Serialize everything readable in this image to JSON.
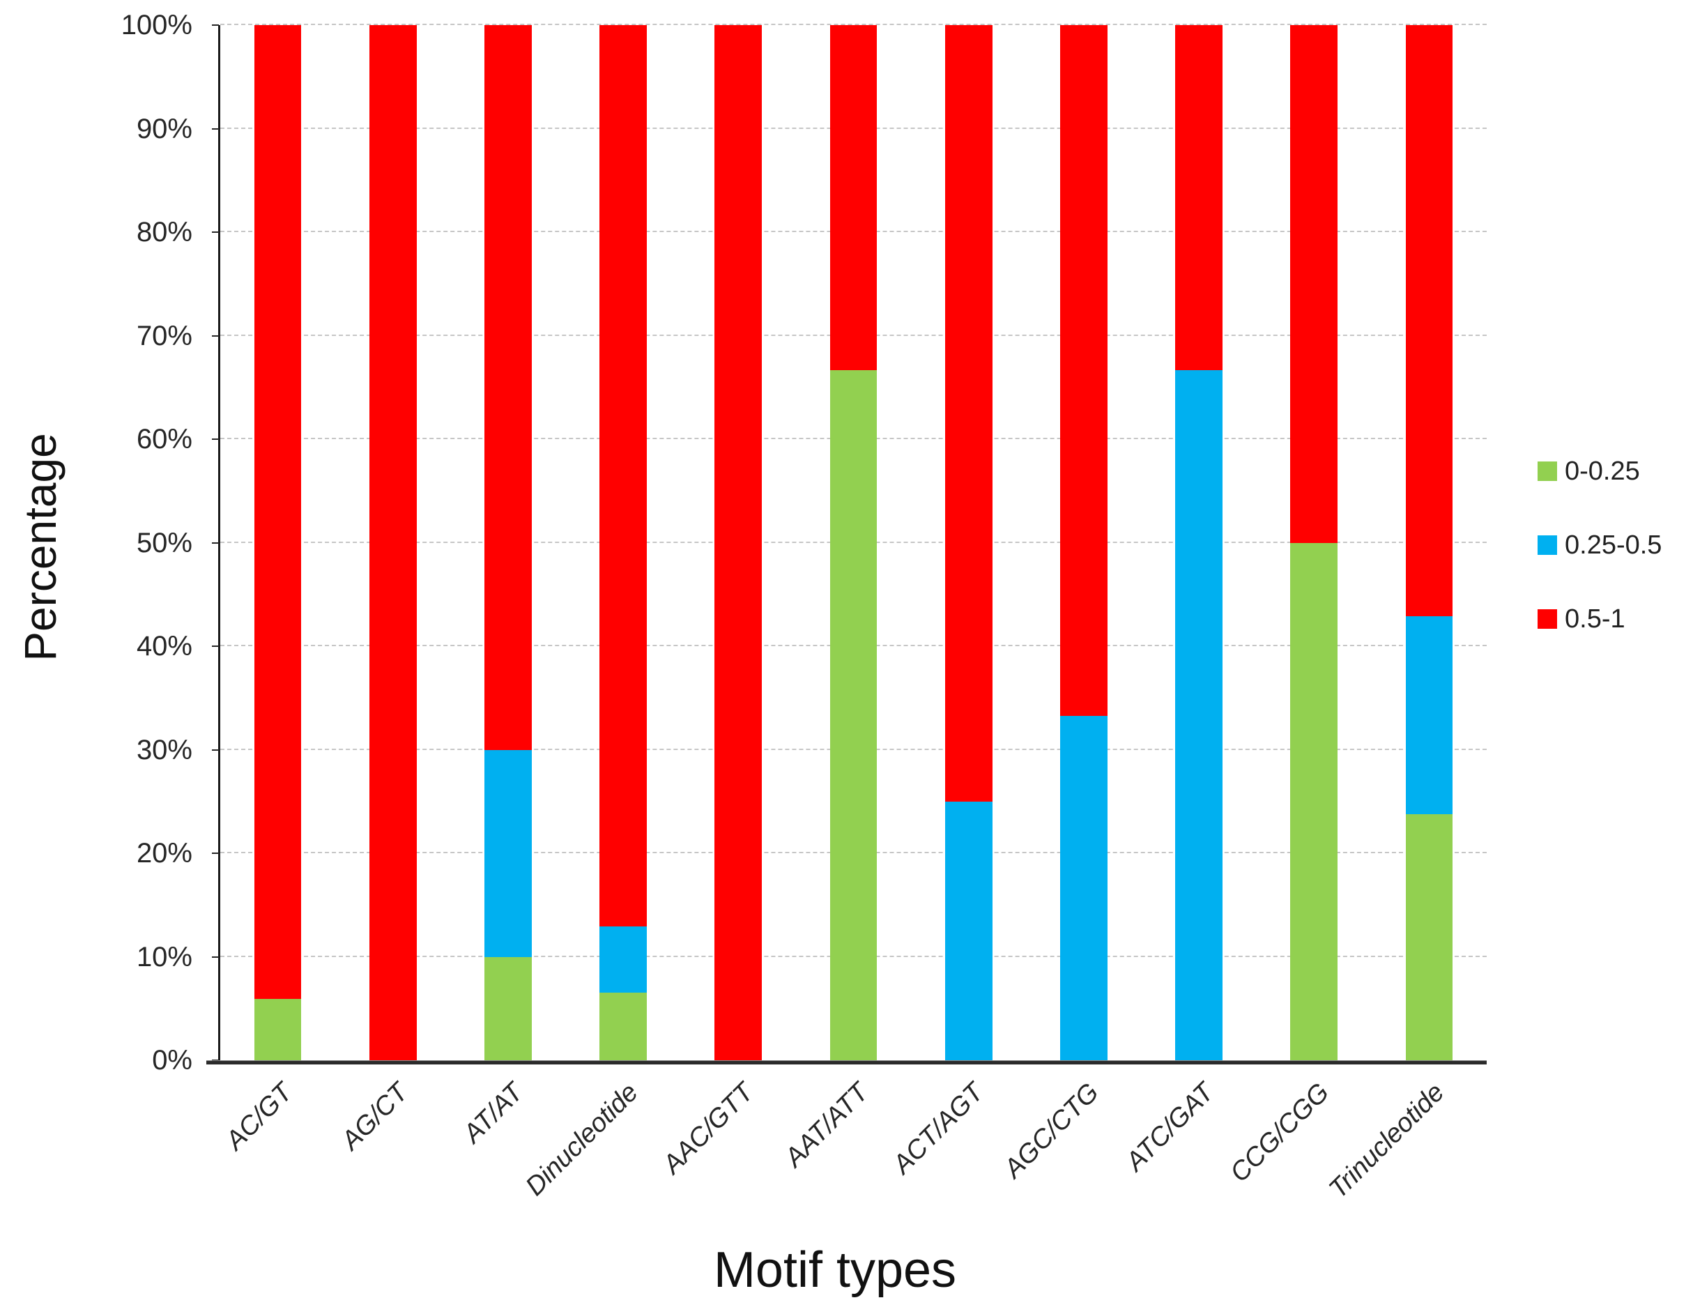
{
  "chart_data": {
    "type": "bar",
    "stacked": true,
    "percent_stacked": true,
    "title": "",
    "xlabel": "Motif types",
    "ylabel": "Percentage",
    "categories": [
      "AC/GT",
      "AG/CT",
      "AT/AT",
      "Dinucleotide",
      "AAC/GTT",
      "AAT/ATT",
      "ACT/AGT",
      "AGC/CTG",
      "ATC/GAT",
      "CCG/CGG",
      "Trinucleotide"
    ],
    "series": [
      {
        "name": "0-0.25",
        "color": "#92d050",
        "values": [
          5.9,
          0,
          10,
          6.5,
          0,
          66.7,
          0,
          0,
          0,
          50,
          23.8
        ]
      },
      {
        "name": "0.25-0.5",
        "color": "#00b0f0",
        "values": [
          0,
          0,
          20,
          6.4,
          0,
          0,
          25,
          33.3,
          66.7,
          0,
          19.1
        ]
      },
      {
        "name": "0.5-1",
        "color": "#ff0000",
        "values": [
          94.1,
          100,
          70,
          87.1,
          100,
          33.3,
          75,
          66.7,
          33.3,
          50,
          57.1
        ]
      }
    ],
    "y_ticks": [
      "0%",
      "10%",
      "20%",
      "30%",
      "40%",
      "50%",
      "60%",
      "70%",
      "80%",
      "90%",
      "100%"
    ],
    "ylim": [
      0,
      100
    ],
    "grid": "horizontal-dashed",
    "legend_position": "right",
    "bar_width_ratio": 0.41
  }
}
